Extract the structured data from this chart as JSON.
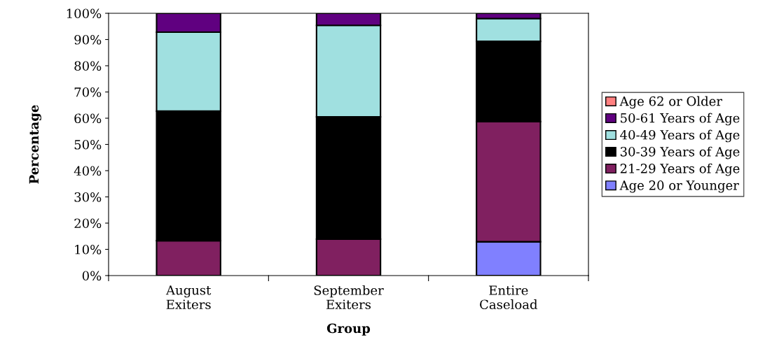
{
  "chart_data": {
    "type": "bar",
    "stacked": true,
    "xlabel": "Group",
    "ylabel": "Percentage",
    "categories": [
      "August\nExiters",
      "September\nExiters",
      "Entire\nCaseload"
    ],
    "series": [
      {
        "name": "Age 20 or Younger",
        "color": "#8080ff",
        "values": [
          0,
          0,
          12.9
        ]
      },
      {
        "name": "21-29 Years of Age",
        "color": "#802060",
        "values": [
          13.3,
          13.9,
          45.8
        ]
      },
      {
        "name": "30-39 Years of Age",
        "color": "#000000",
        "values": [
          49.4,
          46.6,
          30.6
        ]
      },
      {
        "name": "40-49 Years of Age",
        "color": "#a0e0e0",
        "values": [
          30.1,
          34.9,
          8.7
        ]
      },
      {
        "name": "50-61 Years of Age",
        "color": "#600080",
        "values": [
          7.2,
          4.6,
          2.0
        ]
      },
      {
        "name": "Age 62 or Older",
        "color": "#ff8080",
        "values": [
          0,
          0,
          0
        ]
      }
    ],
    "ylim": [
      0,
      100
    ],
    "yticks": [
      {
        "value": 0,
        "label": "0%"
      },
      {
        "value": 10,
        "label": "10%"
      },
      {
        "value": 20,
        "label": "20%"
      },
      {
        "value": 30,
        "label": "30%"
      },
      {
        "value": 40,
        "label": "40%"
      },
      {
        "value": 50,
        "label": "50%"
      },
      {
        "value": 60,
        "label": "60%"
      },
      {
        "value": 70,
        "label": "70%"
      },
      {
        "value": 80,
        "label": "80%"
      },
      {
        "value": 90,
        "label": "90%"
      },
      {
        "value": 100,
        "label": "100%"
      }
    ],
    "grid": false,
    "legend": "right"
  }
}
